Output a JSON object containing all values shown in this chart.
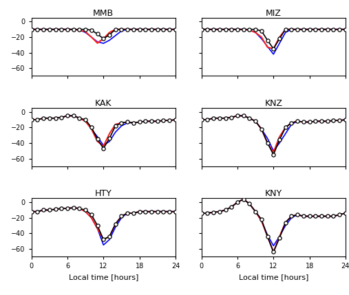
{
  "titles": [
    "MMB",
    "MIZ",
    "KAK",
    "KNZ",
    "HTY",
    "KNY"
  ],
  "xlabel": "Local time [hours]",
  "xlim": [
    0,
    24
  ],
  "ylim": [
    -70,
    5
  ],
  "yticks": [
    0,
    -20,
    -40,
    -60
  ],
  "xticks": [
    0,
    6,
    12,
    18,
    24
  ],
  "obs_color": "black",
  "blue_color": "#0000ff",
  "red_color": "#ff2200",
  "magenta_color": "#cc33cc",
  "background": "white",
  "MMB": {
    "obs": [
      -10,
      -10,
      -10,
      -10,
      -10,
      -10,
      -10,
      -10,
      -10,
      -10,
      -11,
      -16,
      -22,
      -17,
      -10,
      -10,
      -10,
      -10,
      -10,
      -10,
      -10,
      -10,
      -10,
      -10,
      -10
    ],
    "blue": [
      -10,
      -10,
      -10,
      -10,
      -10,
      -10,
      -10,
      -10,
      -11,
      -14,
      -20,
      -26,
      -28,
      -24,
      -18,
      -12,
      -10,
      -10,
      -10,
      -10,
      -10,
      -10,
      -10,
      -10,
      -10
    ],
    "red": [
      -10,
      -10,
      -10,
      -10,
      -10,
      -10,
      -10,
      -10,
      -11,
      -13,
      -20,
      -28,
      -22,
      -14,
      -10,
      -10,
      -10,
      -10,
      -10,
      -10,
      -10,
      -10,
      -10,
      -10,
      -10
    ],
    "magenta": [
      -10,
      -10,
      -10,
      -10,
      -10,
      -10,
      -10,
      -10,
      -11,
      -13,
      -20,
      -27,
      -22,
      -14,
      -10,
      -10,
      -10,
      -10,
      -10,
      -10,
      -10,
      -10,
      -10,
      -10,
      -10
    ]
  },
  "MIZ": {
    "obs": [
      -10,
      -10,
      -10,
      -10,
      -10,
      -10,
      -10,
      -10,
      -10,
      -10,
      -12,
      -24,
      -35,
      -22,
      -10,
      -10,
      -10,
      -10,
      -10,
      -10,
      -10,
      -10,
      -10,
      -10,
      -10
    ],
    "blue": [
      -10,
      -10,
      -10,
      -10,
      -10,
      -10,
      -10,
      -10,
      -11,
      -14,
      -22,
      -32,
      -42,
      -28,
      -14,
      -10,
      -10,
      -10,
      -10,
      -10,
      -10,
      -10,
      -10,
      -10,
      -10
    ],
    "red": [
      -10,
      -10,
      -10,
      -10,
      -10,
      -10,
      -10,
      -10,
      -11,
      -14,
      -20,
      -33,
      -35,
      -20,
      -10,
      -10,
      -10,
      -10,
      -10,
      -10,
      -10,
      -10,
      -10,
      -10,
      -10
    ],
    "magenta": [
      -10,
      -10,
      -10,
      -10,
      -10,
      -10,
      -10,
      -10,
      -11,
      -14,
      -20,
      -33,
      -35,
      -20,
      -10,
      -10,
      -10,
      -10,
      -10,
      -10,
      -10,
      -10,
      -10,
      -10,
      -10
    ]
  },
  "KAK": {
    "obs": [
      -10,
      -10,
      -8,
      -8,
      -8,
      -7,
      -5,
      -5,
      -8,
      -10,
      -20,
      -35,
      -47,
      -34,
      -18,
      -14,
      -13,
      -14,
      -13,
      -12,
      -12,
      -12,
      -11,
      -11,
      -10
    ],
    "blue": [
      -10,
      -10,
      -8,
      -8,
      -8,
      -7,
      -5,
      -5,
      -8,
      -12,
      -22,
      -32,
      -43,
      -38,
      -26,
      -18,
      -14,
      -14,
      -13,
      -12,
      -12,
      -12,
      -11,
      -11,
      -10
    ],
    "red": [
      -10,
      -10,
      -8,
      -8,
      -8,
      -7,
      -5,
      -5,
      -8,
      -12,
      -22,
      -38,
      -44,
      -28,
      -16,
      -14,
      -13,
      -14,
      -13,
      -12,
      -12,
      -12,
      -11,
      -11,
      -10
    ],
    "magenta": [
      -10,
      -10,
      -8,
      -8,
      -8,
      -7,
      -5,
      -5,
      -8,
      -12,
      -22,
      -38,
      -44,
      -28,
      -16,
      -14,
      -13,
      -14,
      -13,
      -12,
      -12,
      -12,
      -11,
      -11,
      -10
    ]
  },
  "KNZ": {
    "obs": [
      -10,
      -10,
      -8,
      -8,
      -8,
      -7,
      -5,
      -5,
      -8,
      -12,
      -22,
      -40,
      -55,
      -36,
      -20,
      -14,
      -12,
      -13,
      -13,
      -12,
      -12,
      -12,
      -11,
      -11,
      -10
    ],
    "blue": [
      -10,
      -10,
      -8,
      -8,
      -8,
      -7,
      -5,
      -5,
      -8,
      -12,
      -22,
      -34,
      -50,
      -40,
      -28,
      -16,
      -12,
      -13,
      -13,
      -12,
      -12,
      -12,
      -11,
      -11,
      -10
    ],
    "red": [
      -10,
      -10,
      -8,
      -8,
      -8,
      -7,
      -5,
      -5,
      -8,
      -12,
      -22,
      -40,
      -52,
      -32,
      -20,
      -14,
      -12,
      -13,
      -13,
      -12,
      -12,
      -12,
      -11,
      -11,
      -10
    ],
    "magenta": [
      -10,
      -10,
      -8,
      -8,
      -8,
      -7,
      -5,
      -5,
      -8,
      -12,
      -22,
      -40,
      -52,
      -32,
      -20,
      -14,
      -12,
      -13,
      -13,
      -12,
      -12,
      -12,
      -11,
      -11,
      -10
    ]
  },
  "HTY": {
    "obs": [
      -12,
      -12,
      -10,
      -10,
      -9,
      -8,
      -8,
      -7,
      -8,
      -10,
      -16,
      -30,
      -48,
      -44,
      -28,
      -18,
      -14,
      -14,
      -12,
      -12,
      -12,
      -12,
      -12,
      -12,
      -12
    ],
    "blue": [
      -12,
      -12,
      -10,
      -10,
      -9,
      -8,
      -8,
      -7,
      -8,
      -12,
      -20,
      -34,
      -55,
      -48,
      -32,
      -20,
      -14,
      -14,
      -12,
      -12,
      -12,
      -12,
      -12,
      -12,
      -12
    ],
    "red": [
      -12,
      -12,
      -10,
      -10,
      -9,
      -8,
      -8,
      -7,
      -8,
      -12,
      -20,
      -34,
      -48,
      -44,
      -28,
      -18,
      -14,
      -14,
      -12,
      -12,
      -12,
      -12,
      -12,
      -12,
      -12
    ],
    "magenta": [
      -12,
      -12,
      -10,
      -10,
      -9,
      -8,
      -8,
      -7,
      -8,
      -12,
      -20,
      -34,
      -48,
      -44,
      -28,
      -18,
      -14,
      -14,
      -12,
      -12,
      -12,
      -12,
      -12,
      -12,
      -12
    ]
  },
  "KNY": {
    "obs": [
      -14,
      -14,
      -13,
      -12,
      -10,
      -6,
      0,
      4,
      -2,
      -12,
      -22,
      -44,
      -64,
      -46,
      -26,
      -18,
      -16,
      -18,
      -18,
      -18,
      -18,
      -18,
      -18,
      -16,
      -14
    ],
    "blue": [
      -14,
      -14,
      -13,
      -12,
      -10,
      -6,
      0,
      4,
      -2,
      -12,
      -24,
      -42,
      -56,
      -44,
      -30,
      -20,
      -16,
      -18,
      -18,
      -18,
      -18,
      -18,
      -18,
      -16,
      -14
    ],
    "red": [
      -14,
      -14,
      -13,
      -12,
      -10,
      -6,
      0,
      4,
      -2,
      -12,
      -24,
      -44,
      -64,
      -44,
      -26,
      -18,
      -16,
      -18,
      -18,
      -18,
      -18,
      -18,
      -18,
      -16,
      -14
    ],
    "magenta": [
      -14,
      -14,
      -13,
      -12,
      -10,
      -6,
      0,
      4,
      -2,
      -12,
      -24,
      -44,
      -64,
      -44,
      -26,
      -18,
      -16,
      -18,
      -18,
      -18,
      -18,
      -18,
      -18,
      -16,
      -14
    ]
  }
}
